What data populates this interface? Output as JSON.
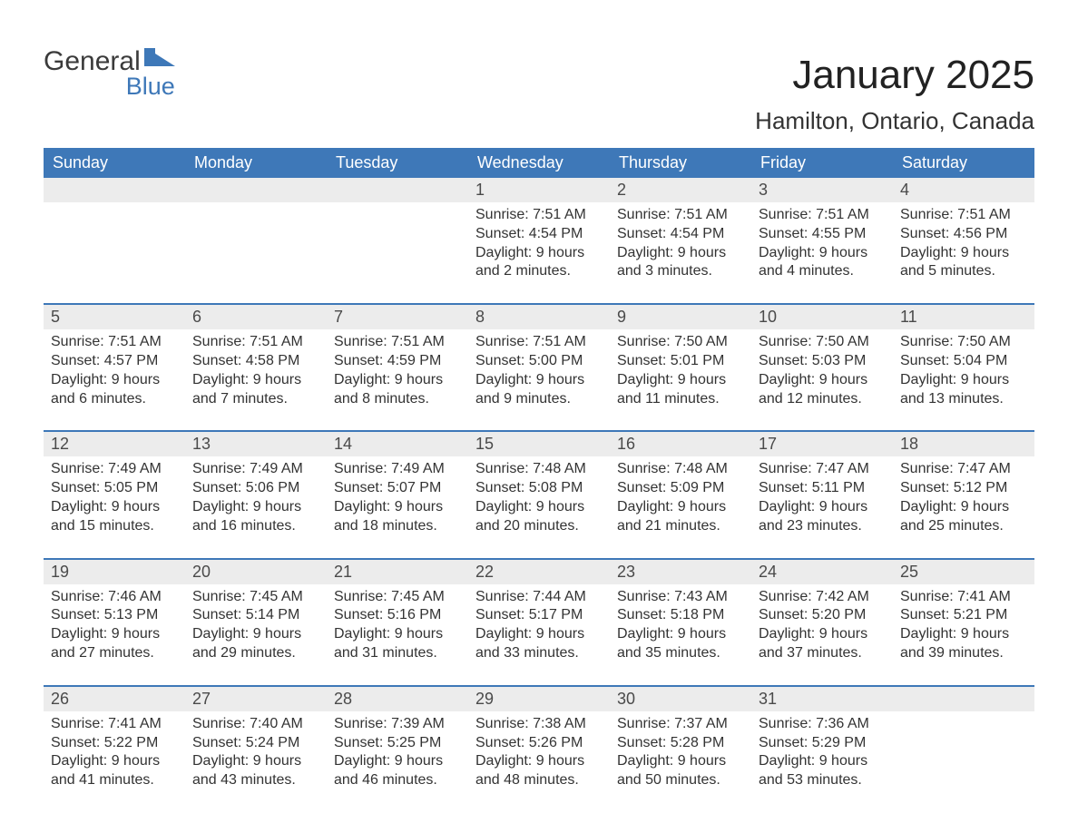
{
  "logo": {
    "word1": "General",
    "word2": "Blue"
  },
  "title": "January 2025",
  "location": "Hamilton, Ontario, Canada",
  "colors": {
    "header_bg": "#3e78b8",
    "header_text": "#ffffff",
    "daynum_bg": "#ececec",
    "daynum_text": "#4a4a4a",
    "body_text": "#333333",
    "row_border": "#3e78b8",
    "logo_dark": "#3b3b3b",
    "logo_blue": "#3e78b8",
    "page_bg": "#ffffff"
  },
  "typography": {
    "title_fontsize": 44,
    "location_fontsize": 26,
    "weekday_fontsize": 18,
    "daynum_fontsize": 18,
    "body_fontsize": 16,
    "logo_fontsize": 30
  },
  "layout": {
    "columns": 7,
    "rows": 5,
    "first_weekday_index": 3,
    "days_in_month": 31
  },
  "weekdays": [
    "Sunday",
    "Monday",
    "Tuesday",
    "Wednesday",
    "Thursday",
    "Friday",
    "Saturday"
  ],
  "weeks": [
    [
      null,
      null,
      null,
      {
        "n": "1",
        "sunrise": "Sunrise: 7:51 AM",
        "sunset": "Sunset: 4:54 PM",
        "d1": "Daylight: 9 hours",
        "d2": "and 2 minutes."
      },
      {
        "n": "2",
        "sunrise": "Sunrise: 7:51 AM",
        "sunset": "Sunset: 4:54 PM",
        "d1": "Daylight: 9 hours",
        "d2": "and 3 minutes."
      },
      {
        "n": "3",
        "sunrise": "Sunrise: 7:51 AM",
        "sunset": "Sunset: 4:55 PM",
        "d1": "Daylight: 9 hours",
        "d2": "and 4 minutes."
      },
      {
        "n": "4",
        "sunrise": "Sunrise: 7:51 AM",
        "sunset": "Sunset: 4:56 PM",
        "d1": "Daylight: 9 hours",
        "d2": "and 5 minutes."
      }
    ],
    [
      {
        "n": "5",
        "sunrise": "Sunrise: 7:51 AM",
        "sunset": "Sunset: 4:57 PM",
        "d1": "Daylight: 9 hours",
        "d2": "and 6 minutes."
      },
      {
        "n": "6",
        "sunrise": "Sunrise: 7:51 AM",
        "sunset": "Sunset: 4:58 PM",
        "d1": "Daylight: 9 hours",
        "d2": "and 7 minutes."
      },
      {
        "n": "7",
        "sunrise": "Sunrise: 7:51 AM",
        "sunset": "Sunset: 4:59 PM",
        "d1": "Daylight: 9 hours",
        "d2": "and 8 minutes."
      },
      {
        "n": "8",
        "sunrise": "Sunrise: 7:51 AM",
        "sunset": "Sunset: 5:00 PM",
        "d1": "Daylight: 9 hours",
        "d2": "and 9 minutes."
      },
      {
        "n": "9",
        "sunrise": "Sunrise: 7:50 AM",
        "sunset": "Sunset: 5:01 PM",
        "d1": "Daylight: 9 hours",
        "d2": "and 11 minutes."
      },
      {
        "n": "10",
        "sunrise": "Sunrise: 7:50 AM",
        "sunset": "Sunset: 5:03 PM",
        "d1": "Daylight: 9 hours",
        "d2": "and 12 minutes."
      },
      {
        "n": "11",
        "sunrise": "Sunrise: 7:50 AM",
        "sunset": "Sunset: 5:04 PM",
        "d1": "Daylight: 9 hours",
        "d2": "and 13 minutes."
      }
    ],
    [
      {
        "n": "12",
        "sunrise": "Sunrise: 7:49 AM",
        "sunset": "Sunset: 5:05 PM",
        "d1": "Daylight: 9 hours",
        "d2": "and 15 minutes."
      },
      {
        "n": "13",
        "sunrise": "Sunrise: 7:49 AM",
        "sunset": "Sunset: 5:06 PM",
        "d1": "Daylight: 9 hours",
        "d2": "and 16 minutes."
      },
      {
        "n": "14",
        "sunrise": "Sunrise: 7:49 AM",
        "sunset": "Sunset: 5:07 PM",
        "d1": "Daylight: 9 hours",
        "d2": "and 18 minutes."
      },
      {
        "n": "15",
        "sunrise": "Sunrise: 7:48 AM",
        "sunset": "Sunset: 5:08 PM",
        "d1": "Daylight: 9 hours",
        "d2": "and 20 minutes."
      },
      {
        "n": "16",
        "sunrise": "Sunrise: 7:48 AM",
        "sunset": "Sunset: 5:09 PM",
        "d1": "Daylight: 9 hours",
        "d2": "and 21 minutes."
      },
      {
        "n": "17",
        "sunrise": "Sunrise: 7:47 AM",
        "sunset": "Sunset: 5:11 PM",
        "d1": "Daylight: 9 hours",
        "d2": "and 23 minutes."
      },
      {
        "n": "18",
        "sunrise": "Sunrise: 7:47 AM",
        "sunset": "Sunset: 5:12 PM",
        "d1": "Daylight: 9 hours",
        "d2": "and 25 minutes."
      }
    ],
    [
      {
        "n": "19",
        "sunrise": "Sunrise: 7:46 AM",
        "sunset": "Sunset: 5:13 PM",
        "d1": "Daylight: 9 hours",
        "d2": "and 27 minutes."
      },
      {
        "n": "20",
        "sunrise": "Sunrise: 7:45 AM",
        "sunset": "Sunset: 5:14 PM",
        "d1": "Daylight: 9 hours",
        "d2": "and 29 minutes."
      },
      {
        "n": "21",
        "sunrise": "Sunrise: 7:45 AM",
        "sunset": "Sunset: 5:16 PM",
        "d1": "Daylight: 9 hours",
        "d2": "and 31 minutes."
      },
      {
        "n": "22",
        "sunrise": "Sunrise: 7:44 AM",
        "sunset": "Sunset: 5:17 PM",
        "d1": "Daylight: 9 hours",
        "d2": "and 33 minutes."
      },
      {
        "n": "23",
        "sunrise": "Sunrise: 7:43 AM",
        "sunset": "Sunset: 5:18 PM",
        "d1": "Daylight: 9 hours",
        "d2": "and 35 minutes."
      },
      {
        "n": "24",
        "sunrise": "Sunrise: 7:42 AM",
        "sunset": "Sunset: 5:20 PM",
        "d1": "Daylight: 9 hours",
        "d2": "and 37 minutes."
      },
      {
        "n": "25",
        "sunrise": "Sunrise: 7:41 AM",
        "sunset": "Sunset: 5:21 PM",
        "d1": "Daylight: 9 hours",
        "d2": "and 39 minutes."
      }
    ],
    [
      {
        "n": "26",
        "sunrise": "Sunrise: 7:41 AM",
        "sunset": "Sunset: 5:22 PM",
        "d1": "Daylight: 9 hours",
        "d2": "and 41 minutes."
      },
      {
        "n": "27",
        "sunrise": "Sunrise: 7:40 AM",
        "sunset": "Sunset: 5:24 PM",
        "d1": "Daylight: 9 hours",
        "d2": "and 43 minutes."
      },
      {
        "n": "28",
        "sunrise": "Sunrise: 7:39 AM",
        "sunset": "Sunset: 5:25 PM",
        "d1": "Daylight: 9 hours",
        "d2": "and 46 minutes."
      },
      {
        "n": "29",
        "sunrise": "Sunrise: 7:38 AM",
        "sunset": "Sunset: 5:26 PM",
        "d1": "Daylight: 9 hours",
        "d2": "and 48 minutes."
      },
      {
        "n": "30",
        "sunrise": "Sunrise: 7:37 AM",
        "sunset": "Sunset: 5:28 PM",
        "d1": "Daylight: 9 hours",
        "d2": "and 50 minutes."
      },
      {
        "n": "31",
        "sunrise": "Sunrise: 7:36 AM",
        "sunset": "Sunset: 5:29 PM",
        "d1": "Daylight: 9 hours",
        "d2": "and 53 minutes."
      },
      null
    ]
  ]
}
